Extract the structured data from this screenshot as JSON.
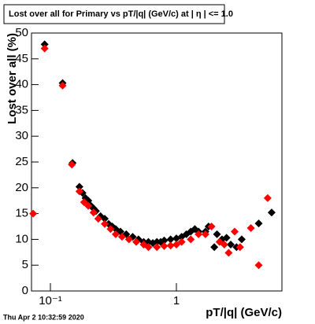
{
  "chart_data": {
    "type": "scatter",
    "title": "Lost over all for Primary vs pT/|q| (GeV/c) at |  η  | <= 1.0",
    "x_label": "pT/|q| (GeV/c)",
    "y_label": "Lost over all (%)",
    "timestamp": "Thu Apr  2 10:32:59 2020",
    "log_x": true,
    "xlim": [
      0.0708,
      6.88
    ],
    "ylim": [
      0,
      50
    ],
    "xticks": [
      {
        "value": 0.1,
        "label": "10⁻¹"
      },
      1
    ],
    "yticks": [
      0,
      5,
      10,
      15,
      20,
      25,
      30,
      35,
      40,
      45,
      50
    ],
    "series": [
      {
        "color": "#000000",
        "x": [
          0.09,
          0.125,
          0.15,
          0.17,
          0.18,
          0.19,
          0.2,
          0.21,
          0.22,
          0.23,
          0.25,
          0.27,
          0.29,
          0.31,
          0.33,
          0.36,
          0.4,
          0.45,
          0.5,
          0.55,
          0.6,
          0.65,
          0.7,
          0.75,
          0.8,
          0.9,
          1.0,
          1.1,
          1.2,
          1.3,
          1.4,
          1.5,
          1.7,
          1.8,
          2.0,
          2.1,
          2.3,
          2.5,
          2.7,
          3.0,
          3.3,
          4.5,
          5.7
        ],
        "values": [
          47.8,
          40.3,
          24.8,
          20.2,
          19,
          18,
          17.5,
          16.5,
          16,
          15.5,
          14.5,
          14,
          13,
          12.5,
          12,
          11.5,
          11,
          10.5,
          10,
          9.5,
          9.5,
          9.3,
          9.5,
          9.5,
          9.8,
          10,
          10.2,
          10.5,
          11,
          11.5,
          12,
          11.5,
          11.5,
          12.5,
          8.5,
          11,
          10,
          10.3,
          9,
          8.5,
          10,
          13.1,
          15.2
        ]
      },
      {
        "color": "#ff0000",
        "x": [
          0.073,
          0.09,
          0.125,
          0.148,
          0.17,
          0.185,
          0.2,
          0.22,
          0.24,
          0.27,
          0.3,
          0.33,
          0.37,
          0.42,
          0.48,
          0.55,
          0.6,
          0.7,
          0.8,
          0.9,
          1.0,
          1.1,
          1.3,
          1.5,
          1.7,
          1.9,
          2.2,
          2.4,
          2.6,
          2.9,
          3.2,
          3.9,
          4.5,
          5.3
        ],
        "values": [
          15,
          47,
          39.8,
          24.5,
          19.3,
          17.2,
          16.5,
          15.2,
          14,
          13,
          12,
          11,
          10.5,
          10,
          9.5,
          9,
          8.5,
          8.5,
          8.7,
          8.8,
          9,
          9.5,
          10,
          11,
          11,
          12.5,
          9.5,
          9,
          7.4,
          11.5,
          8.5,
          12.2,
          5,
          18
        ]
      }
    ]
  }
}
